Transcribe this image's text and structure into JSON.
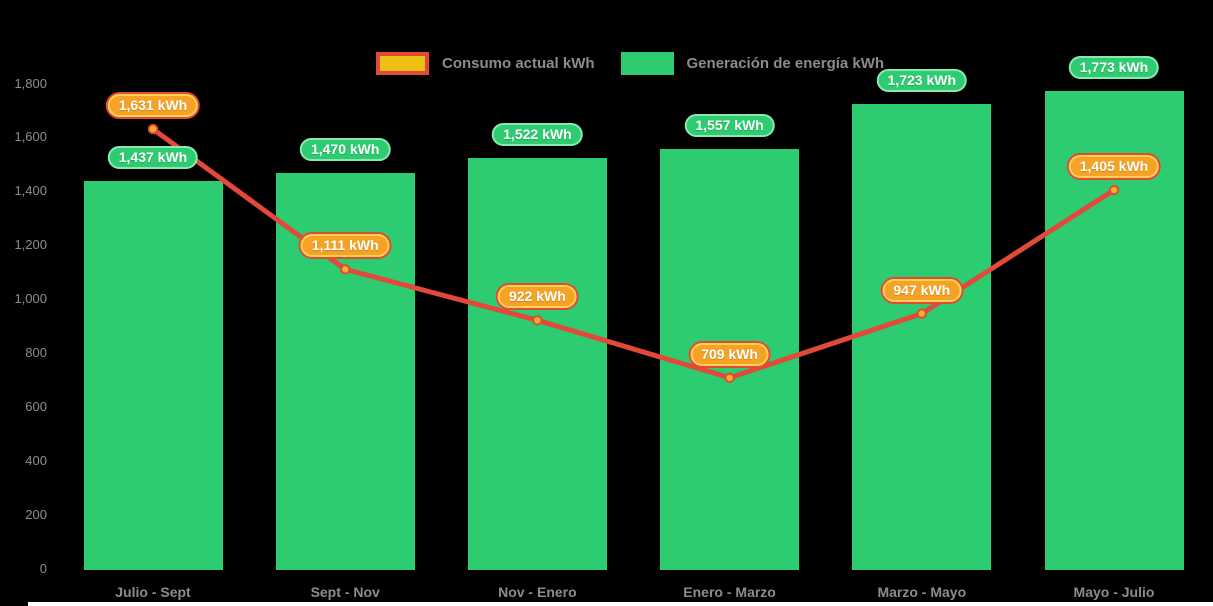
{
  "background": "#000000",
  "legend": {
    "text_color": "#8C8C8C",
    "items": [
      {
        "label": "Consumo actual kWh",
        "swatch_fill": "#ECC111",
        "swatch_border": "#E2493B"
      },
      {
        "label": "Generación de energía kWh",
        "swatch_fill": "#2ECC71",
        "swatch_border": "#2ECC71"
      }
    ]
  },
  "chart_data": {
    "type": "bar+line",
    "title": "",
    "xlabel": "",
    "ylabel": "",
    "categories": [
      "Julio - Sept",
      "Sept - Nov",
      "Nov - Enero",
      "Enero - Marzo",
      "Marzo - Mayo",
      "Mayo - Julio"
    ],
    "series": [
      {
        "name": "Generación de energía kWh",
        "type": "bar",
        "values": [
          1437,
          1470,
          1522,
          1557,
          1723,
          1773
        ],
        "color": "#2ECC71",
        "label_bg": "#2ECC71",
        "label_border": "#8BE8B2"
      },
      {
        "name": "Consumo actual kWh",
        "type": "line",
        "values": [
          1631,
          1111,
          922,
          709,
          947,
          1405
        ],
        "color": "#E2493B",
        "marker_fill": "#F8B12C",
        "label_bg": "#F5A326",
        "label_border": "#FFD44D",
        "label_outline": "#E2493B"
      }
    ],
    "value_suffix": " kWh",
    "ylim": [
      0,
      1800
    ],
    "ytick_step": 200,
    "grid": false,
    "legend_position": "top",
    "axis_text_color": "#8C8C8C"
  }
}
